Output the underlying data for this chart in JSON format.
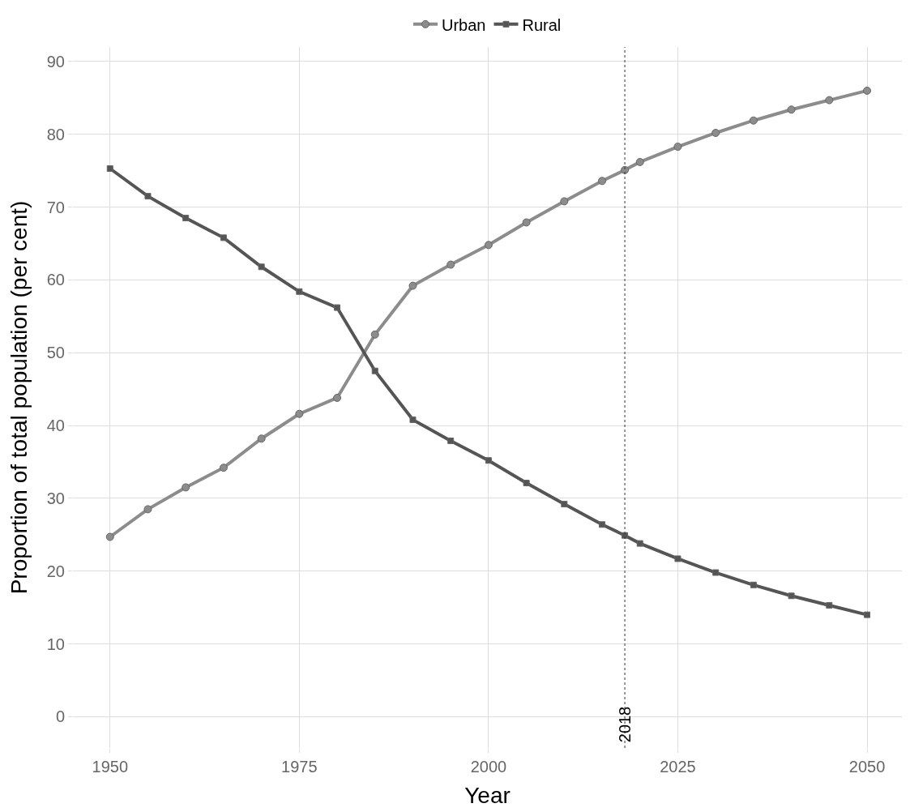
{
  "chart_data": {
    "type": "line",
    "xlabel": "Year",
    "ylabel": "Proportion of total population (per cent)",
    "x": [
      1950,
      1955,
      1960,
      1965,
      1970,
      1975,
      1980,
      1985,
      1990,
      1995,
      2000,
      2005,
      2010,
      2015,
      2018,
      2020,
      2025,
      2030,
      2035,
      2040,
      2045,
      2050
    ],
    "series": [
      {
        "name": "Urban",
        "color": "#8c8c8c",
        "marker": "circle",
        "values": [
          24.7,
          28.5,
          31.5,
          34.2,
          38.2,
          41.6,
          43.8,
          52.5,
          59.2,
          62.1,
          64.8,
          67.9,
          70.8,
          73.6,
          75.1,
          76.2,
          78.3,
          80.2,
          81.9,
          83.4,
          84.7,
          86.0
        ]
      },
      {
        "name": "Rural",
        "color": "#555555",
        "marker": "square",
        "values": [
          75.3,
          71.5,
          68.5,
          65.8,
          61.8,
          58.4,
          56.2,
          47.5,
          40.8,
          37.9,
          35.2,
          32.1,
          29.2,
          26.4,
          24.9,
          23.8,
          21.7,
          19.8,
          18.1,
          16.6,
          15.3,
          14.0
        ]
      }
    ],
    "xlim": [
      1945.1,
      2054.6
    ],
    "xticks": [
      1950,
      1975,
      2000,
      2025,
      2050
    ],
    "ylim": [
      -4.3,
      92
    ],
    "yticks": [
      0,
      10,
      20,
      30,
      40,
      50,
      60,
      70,
      80,
      90
    ],
    "grid": true,
    "legend": "top",
    "ref_lines": [
      {
        "axis": "x",
        "value": 2018,
        "label": "2018",
        "color": "#333333",
        "line_style": "dotted"
      }
    ]
  }
}
